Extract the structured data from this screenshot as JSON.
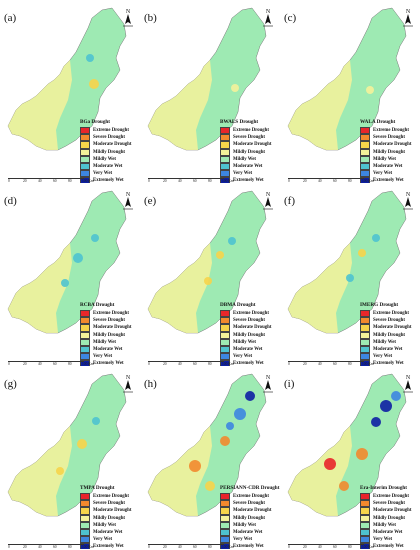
{
  "legend_labels": [
    "Extreme Drought",
    "Severe Drought",
    "Moderate Drought",
    "Mildly Drought",
    "Mildly Wet",
    "Moderate Wet",
    "Very Wet",
    "Extremely Wet"
  ],
  "legend_colors": [
    "#e8252a",
    "#f2892d",
    "#f6d44a",
    "#f4f29a",
    "#9eeab3",
    "#4ec3cf",
    "#3d86e0",
    "#0d1fa3"
  ],
  "scale_labels": [
    "0",
    "20",
    "40",
    "60",
    "80",
    "100 Km"
  ],
  "north_label": "N",
  "icons": {
    "north_arrow": "north-arrow-icon"
  },
  "panels": [
    {
      "label": "(a)",
      "title": "BGa Drought",
      "spots": [
        {
          "cls": "d3",
          "cx": 94,
          "cy": 84,
          "r": 5
        },
        {
          "cls": "w6",
          "cx": 90,
          "cy": 58,
          "r": 4
        }
      ]
    },
    {
      "label": "(b)",
      "title": "BWALS Drought",
      "spots": [
        {
          "cls": "d4",
          "cx": 95,
          "cy": 88,
          "r": 4
        }
      ]
    },
    {
      "label": "(c)",
      "title": "WALA Drought",
      "spots": [
        {
          "cls": "d4",
          "cx": 90,
          "cy": 90,
          "r": 4
        }
      ]
    },
    {
      "label": "(d)",
      "title": "RCBA Drought",
      "spots": [
        {
          "cls": "w6",
          "cx": 78,
          "cy": 75,
          "r": 5
        },
        {
          "cls": "w6",
          "cx": 95,
          "cy": 55,
          "r": 4
        },
        {
          "cls": "w6",
          "cx": 65,
          "cy": 100,
          "r": 4
        }
      ]
    },
    {
      "label": "(e)",
      "title": "DBMA Drought",
      "spots": [
        {
          "cls": "d3",
          "cx": 80,
          "cy": 72,
          "r": 4
        },
        {
          "cls": "d3",
          "cx": 68,
          "cy": 98,
          "r": 4
        },
        {
          "cls": "w6",
          "cx": 92,
          "cy": 58,
          "r": 4
        }
      ]
    },
    {
      "label": "(f)",
      "title": "IMERG Drought",
      "spots": [
        {
          "cls": "d3",
          "cx": 82,
          "cy": 70,
          "r": 4
        },
        {
          "cls": "w6",
          "cx": 70,
          "cy": 95,
          "r": 4
        },
        {
          "cls": "w6",
          "cx": 96,
          "cy": 55,
          "r": 4
        }
      ]
    },
    {
      "label": "(g)",
      "title": "TMPA Drought",
      "spots": [
        {
          "cls": "d3",
          "cx": 82,
          "cy": 78,
          "r": 5
        },
        {
          "cls": "d3",
          "cx": 60,
          "cy": 105,
          "r": 4
        },
        {
          "cls": "w6",
          "cx": 96,
          "cy": 55,
          "r": 4
        }
      ]
    },
    {
      "label": "(h)",
      "title": "PERSIANN-CDR Drought",
      "spots": [
        {
          "cls": "d2",
          "cx": 55,
          "cy": 100,
          "r": 6
        },
        {
          "cls": "d2",
          "cx": 85,
          "cy": 75,
          "r": 5
        },
        {
          "cls": "d3",
          "cx": 70,
          "cy": 120,
          "r": 5
        },
        {
          "cls": "w7",
          "cx": 100,
          "cy": 48,
          "r": 6
        },
        {
          "cls": "w8",
          "cx": 110,
          "cy": 30,
          "r": 5
        },
        {
          "cls": "w7",
          "cx": 90,
          "cy": 60,
          "r": 4
        }
      ]
    },
    {
      "label": "(i)",
      "title": "Era-Interim Drought",
      "spots": [
        {
          "cls": "d1",
          "cx": 50,
          "cy": 98,
          "r": 6
        },
        {
          "cls": "d2",
          "cx": 82,
          "cy": 88,
          "r": 6
        },
        {
          "cls": "d2",
          "cx": 64,
          "cy": 120,
          "r": 5
        },
        {
          "cls": "w8",
          "cx": 106,
          "cy": 40,
          "r": 6
        },
        {
          "cls": "w8",
          "cx": 96,
          "cy": 56,
          "r": 5
        },
        {
          "cls": "w7",
          "cx": 116,
          "cy": 30,
          "r": 5
        }
      ]
    }
  ]
}
